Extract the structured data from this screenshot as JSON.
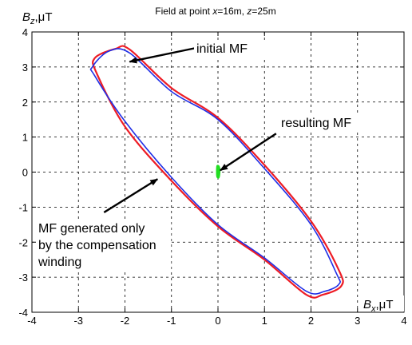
{
  "chart_data": {
    "type": "line",
    "title": "Field at point x=16m, z=25m",
    "title_parts": [
      "Field at point ",
      "x",
      "=16m, ",
      "z",
      "=25m"
    ],
    "xlabel": "Bx,μT",
    "xlabel_parts": [
      "B",
      "x",
      ",μT"
    ],
    "ylabel": "Bz,μT",
    "ylabel_parts": [
      "B",
      "z",
      ",μT"
    ],
    "xlim": [
      -4,
      4
    ],
    "ylim": [
      -4,
      4
    ],
    "xticks": [
      "-4",
      "-3",
      "-2",
      "-1",
      "0",
      "1",
      "2",
      "3",
      "4"
    ],
    "yticks": [
      "4",
      "3",
      "2",
      "1",
      "0",
      "-1",
      "-2",
      "-3",
      "-4"
    ],
    "grid": true,
    "grid_style": "dashed",
    "colors": {
      "initial": "#ee1c25",
      "compensation": "#1f2ee6",
      "resulting": "#22dd22"
    },
    "series": [
      {
        "label": "initial MF",
        "color": "#ee1c25",
        "shape": "ellipse",
        "points": [
          [
            -2.65,
            3.25
          ],
          [
            -2.2,
            3.52
          ],
          [
            -1.9,
            3.5
          ],
          [
            -1.0,
            2.4
          ],
          [
            0.0,
            1.55
          ],
          [
            1.0,
            0.2
          ],
          [
            2.0,
            -1.4
          ],
          [
            2.6,
            -2.8
          ],
          [
            2.65,
            -3.25
          ],
          [
            2.25,
            -3.5
          ],
          [
            1.9,
            -3.5
          ],
          [
            1.0,
            -2.5
          ],
          [
            0.0,
            -1.55
          ],
          [
            -1.0,
            -0.25
          ],
          [
            -2.0,
            1.3
          ],
          [
            -2.6,
            2.8
          ]
        ]
      },
      {
        "label": "MF generated only by the compensation winding",
        "color": "#1f2ee6",
        "shape": "ellipse",
        "points": [
          [
            -2.7,
            3.0
          ],
          [
            -2.35,
            3.45
          ],
          [
            -1.9,
            3.4
          ],
          [
            -1.0,
            2.3
          ],
          [
            0.0,
            1.5
          ],
          [
            1.0,
            0.1
          ],
          [
            2.0,
            -1.5
          ],
          [
            2.55,
            -2.9
          ],
          [
            2.6,
            -3.2
          ],
          [
            2.3,
            -3.4
          ],
          [
            1.9,
            -3.4
          ],
          [
            1.0,
            -2.45
          ],
          [
            0.0,
            -1.5
          ],
          [
            -1.0,
            -0.15
          ],
          [
            -2.0,
            1.45
          ],
          [
            -2.65,
            2.75
          ]
        ]
      },
      {
        "label": "resulting MF",
        "color": "#22dd22",
        "shape": "blob",
        "points": [
          [
            -0.02,
            0.18
          ],
          [
            0.03,
            0.15
          ],
          [
            0.04,
            0.0
          ],
          [
            0.02,
            -0.16
          ],
          [
            -0.02,
            -0.14
          ],
          [
            -0.03,
            0.0
          ]
        ]
      }
    ],
    "annotations": [
      {
        "text": "initial MF",
        "lines": [
          "initial MF"
        ],
        "arrow_from": [
          -0.45,
          3.55
        ],
        "arrow_to": [
          -1.9,
          3.15
        ]
      },
      {
        "text": "resulting MF",
        "lines": [
          "resulting MF"
        ],
        "arrow_from": [
          1.25,
          1.1
        ],
        "arrow_to": [
          0.05,
          0.05
        ]
      },
      {
        "text": "MF generated only by the compensation winding",
        "lines": [
          "MF generated only",
          "by the compensation",
          "winding"
        ],
        "arrow_from": [
          -2.45,
          -1.15
        ],
        "arrow_to": [
          -1.3,
          -0.2
        ]
      }
    ]
  }
}
